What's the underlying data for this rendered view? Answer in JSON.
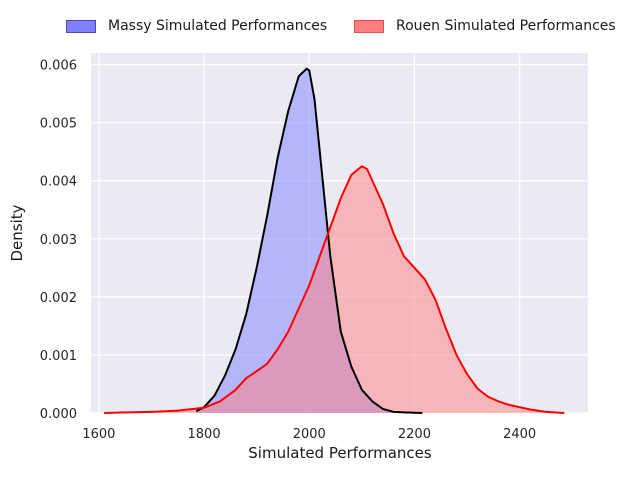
{
  "chart_data": {
    "type": "area",
    "title": "",
    "xlabel": "Simulated Performances",
    "ylabel": "Density",
    "xlim": [
      1585,
      2530
    ],
    "ylim": [
      0,
      0.0062
    ],
    "xticks": [
      1600,
      1800,
      2000,
      2200,
      2400
    ],
    "yticks": [
      0.0,
      0.001,
      0.002,
      0.003,
      0.004,
      0.005,
      0.006
    ],
    "xtick_labels": [
      "1600",
      "1800",
      "2000",
      "2200",
      "2400"
    ],
    "ytick_labels": [
      "0.000",
      "0.001",
      "0.002",
      "0.003",
      "0.004",
      "0.005",
      "0.006"
    ],
    "grid": true,
    "legend_position": "top-center",
    "background": "#eaeaf2",
    "series": [
      {
        "name": "Massy Simulated Performances",
        "fill": "#8080ff",
        "line": "#000000",
        "x": [
          1785,
          1800,
          1820,
          1840,
          1860,
          1880,
          1900,
          1920,
          1940,
          1960,
          1980,
          1995,
          2000,
          2010,
          2020,
          2040,
          2060,
          2080,
          2100,
          2120,
          2140,
          2160,
          2180,
          2200,
          2215
        ],
        "y": [
          3e-05,
          0.0001,
          0.0003,
          0.00065,
          0.0011,
          0.0017,
          0.0025,
          0.0034,
          0.0044,
          0.0052,
          0.0058,
          0.00593,
          0.0059,
          0.0054,
          0.0045,
          0.0027,
          0.0014,
          0.0008,
          0.0004,
          0.0002,
          7e-05,
          2e-05,
          1e-05,
          5e-06,
          0.0
        ]
      },
      {
        "name": "Rouen Simulated Performances",
        "fill": "#ff7f7f",
        "line": "#ff0000",
        "x": [
          1610,
          1650,
          1700,
          1750,
          1800,
          1830,
          1860,
          1880,
          1900,
          1920,
          1940,
          1960,
          1980,
          2000,
          2020,
          2040,
          2060,
          2080,
          2100,
          2110,
          2120,
          2140,
          2160,
          2180,
          2200,
          2220,
          2240,
          2260,
          2280,
          2300,
          2320,
          2340,
          2360,
          2380,
          2400,
          2420,
          2450,
          2485
        ],
        "y": [
          0.0,
          1e-05,
          2e-05,
          4e-05,
          9e-05,
          0.0002,
          0.0004,
          0.0006,
          0.00072,
          0.00085,
          0.0011,
          0.0014,
          0.0018,
          0.0022,
          0.0027,
          0.0032,
          0.0037,
          0.0041,
          0.00425,
          0.0042,
          0.004,
          0.0036,
          0.0031,
          0.0027,
          0.0025,
          0.0023,
          0.00195,
          0.00145,
          0.001,
          0.00067,
          0.00042,
          0.00028,
          0.0002,
          0.00014,
          0.0001,
          6e-05,
          2e-05,
          0.0
        ]
      }
    ]
  }
}
